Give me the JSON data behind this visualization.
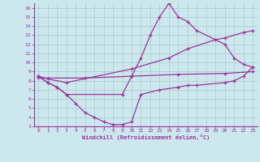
{
  "title": "",
  "xlabel": "Windchill (Refroidissement éolien,°C)",
  "bg_color": "#cce8ee",
  "line_color": "#993399",
  "grid_color": "#aacccc",
  "xlim": [
    -0.5,
    23.5
  ],
  "ylim": [
    3,
    16.5
  ],
  "xticks": [
    0,
    1,
    2,
    3,
    4,
    5,
    6,
    7,
    8,
    9,
    10,
    11,
    12,
    13,
    14,
    15,
    16,
    17,
    18,
    19,
    20,
    21,
    22,
    23
  ],
  "yticks": [
    3,
    4,
    5,
    6,
    7,
    8,
    9,
    10,
    11,
    12,
    13,
    14,
    15,
    16
  ],
  "line1_x": [
    0,
    1,
    2,
    3,
    9,
    10,
    11,
    12,
    13,
    14,
    15,
    16,
    17,
    20,
    21,
    22,
    23
  ],
  "line1_y": [
    8.5,
    7.8,
    7.3,
    6.5,
    6.5,
    8.5,
    10.5,
    13.0,
    15.0,
    16.5,
    15.0,
    14.5,
    13.5,
    12.0,
    10.5,
    9.8,
    9.5
  ],
  "line2_x": [
    0,
    1,
    3,
    10,
    14,
    16,
    19,
    20,
    22,
    23
  ],
  "line2_y": [
    8.5,
    8.2,
    7.8,
    9.3,
    10.5,
    11.5,
    12.5,
    12.7,
    13.3,
    13.5
  ],
  "line3_x": [
    0,
    1,
    2,
    3,
    4,
    5,
    6,
    7,
    8,
    9,
    10,
    11,
    13,
    15,
    16,
    17,
    20,
    21,
    22,
    23
  ],
  "line3_y": [
    8.5,
    7.8,
    7.3,
    6.5,
    5.5,
    4.5,
    4.0,
    3.5,
    3.2,
    3.2,
    3.5,
    6.5,
    7.0,
    7.3,
    7.5,
    7.5,
    7.8,
    8.0,
    8.5,
    9.5
  ],
  "line4_x": [
    0,
    5,
    10,
    15,
    20,
    23
  ],
  "line4_y": [
    8.3,
    8.3,
    8.5,
    8.7,
    8.8,
    9.0
  ]
}
